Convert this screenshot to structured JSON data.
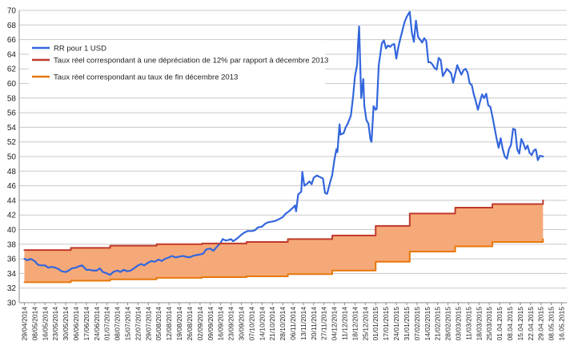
{
  "chart_data": {
    "type": "line",
    "title": "",
    "xlabel": "",
    "ylabel": "",
    "ylim": [
      30,
      70
    ],
    "yticks": [
      30,
      32,
      34,
      36,
      38,
      40,
      42,
      44,
      46,
      48,
      50,
      52,
      54,
      56,
      58,
      60,
      62,
      64,
      66,
      68,
      70
    ],
    "grid": true,
    "legend_position": "top-left",
    "x_categories": [
      "29/04/2014",
      "08/05/2014",
      "16/05/2014",
      "23/05/2014",
      "30/05/2014",
      "06/06/2014",
      "17/06/2014",
      "24/06/2014",
      "01/07/2014",
      "08/07/2014",
      "15/07/2014",
      "22/07/2014",
      "29/07/2014",
      "05/08/2014",
      "12/08/2014",
      "19/08/2014",
      "26/08/2014",
      "02/09/2014",
      "09/09/2014",
      "16/09/2014",
      "23/09/2014",
      "30/09/2014",
      "07/10/2014",
      "14/10/2014",
      "21/10/2014",
      "28/10/2014",
      "06/11/2014",
      "13/11/2014",
      "20/11/2014",
      "27/11/2014",
      "04/12/2014",
      "11/12/2014",
      "18/12/2014",
      "25/12/2014",
      "01/01/2015",
      "17/01/2015",
      "24/01/2015",
      "31/01/2015",
      "07/02/2015",
      "14/02/2015",
      "21/02/2015",
      "28/02/2015",
      "03/03/2015",
      "11/03/2015",
      "18/03/2015",
      "25/03/2015",
      "01.04.2015",
      "08.04.2015",
      "15.04.2015",
      "22.04.2015",
      "29.04.2015",
      "08.05.2015",
      "16.05.2015"
    ],
    "series": [
      {
        "name": "RR pour 1  USD",
        "color": "#3366dd",
        "style": "line",
        "values": [
          [
            0,
            36.0
          ],
          [
            0.3,
            35.8
          ],
          [
            0.6,
            36.0
          ],
          [
            1,
            35.7
          ],
          [
            1.3,
            35.2
          ],
          [
            1.6,
            35.1
          ],
          [
            2,
            35.1
          ],
          [
            2.3,
            34.8
          ],
          [
            2.6,
            34.9
          ],
          [
            3,
            34.8
          ],
          [
            3.3,
            34.6
          ],
          [
            3.6,
            34.3
          ],
          [
            4,
            34.2
          ],
          [
            4.3,
            34.4
          ],
          [
            4.6,
            34.7
          ],
          [
            5,
            34.8
          ],
          [
            5.3,
            35.0
          ],
          [
            5.6,
            35.1
          ],
          [
            6,
            34.5
          ],
          [
            6.3,
            34.5
          ],
          [
            6.6,
            34.4
          ],
          [
            7,
            34.4
          ],
          [
            7.3,
            34.7
          ],
          [
            7.6,
            34.2
          ],
          [
            8,
            34.0
          ],
          [
            8.3,
            33.8
          ],
          [
            8.6,
            34.2
          ],
          [
            9,
            34.4
          ],
          [
            9.3,
            34.2
          ],
          [
            9.6,
            34.5
          ],
          [
            10,
            34.3
          ],
          [
            10.3,
            34.4
          ],
          [
            10.6,
            34.7
          ],
          [
            11,
            35.1
          ],
          [
            11.3,
            35.3
          ],
          [
            11.6,
            35.1
          ],
          [
            12,
            35.5
          ],
          [
            12.3,
            35.7
          ],
          [
            12.6,
            35.6
          ],
          [
            13,
            35.9
          ],
          [
            13.3,
            35.7
          ],
          [
            13.6,
            36.0
          ],
          [
            14,
            36.2
          ],
          [
            14.3,
            36.4
          ],
          [
            14.6,
            36.2
          ],
          [
            15,
            36.3
          ],
          [
            15.3,
            36.4
          ],
          [
            15.6,
            36.3
          ],
          [
            16,
            36.2
          ],
          [
            16.3,
            36.4
          ],
          [
            16.6,
            36.5
          ],
          [
            17,
            36.6
          ],
          [
            17.3,
            36.7
          ],
          [
            17.6,
            37.3
          ],
          [
            18,
            37.4
          ],
          [
            18.3,
            37.1
          ],
          [
            18.6,
            37.6
          ],
          [
            19,
            38.2
          ],
          [
            19.2,
            38.7
          ],
          [
            19.5,
            38.5
          ],
          [
            19.8,
            38.6
          ],
          [
            20,
            38.7
          ],
          [
            20.2,
            38.4
          ],
          [
            20.4,
            38.6
          ],
          [
            20.6,
            38.8
          ],
          [
            21,
            39.3
          ],
          [
            21.3,
            39.6
          ],
          [
            21.6,
            39.8
          ],
          [
            22,
            39.8
          ],
          [
            22.3,
            39.9
          ],
          [
            22.6,
            40.3
          ],
          [
            23,
            40.4
          ],
          [
            23.3,
            40.8
          ],
          [
            23.6,
            41.0
          ],
          [
            24,
            41.1
          ],
          [
            24.3,
            41.2
          ],
          [
            24.6,
            41.4
          ],
          [
            25,
            41.7
          ],
          [
            25.3,
            42.2
          ],
          [
            25.6,
            42.5
          ],
          [
            26,
            43.0
          ],
          [
            26.2,
            43.3
          ],
          [
            26.3,
            42.5
          ],
          [
            26.5,
            44.8
          ],
          [
            26.8,
            45.2
          ],
          [
            26.9,
            47.9
          ],
          [
            27.1,
            46.0
          ],
          [
            27.3,
            46.2
          ],
          [
            27.6,
            46.6
          ],
          [
            27.8,
            46.2
          ],
          [
            28,
            47.1
          ],
          [
            28.3,
            47.4
          ],
          [
            28.6,
            47.2
          ],
          [
            28.9,
            47.0
          ],
          [
            29.1,
            45.0
          ],
          [
            29.3,
            44.9
          ],
          [
            29.6,
            46.5
          ],
          [
            29.8,
            47.5
          ],
          [
            30,
            49.5
          ],
          [
            30.2,
            51.0
          ],
          [
            30.3,
            50.6
          ],
          [
            30.5,
            54.4
          ],
          [
            30.6,
            53.0
          ],
          [
            30.9,
            53.2
          ],
          [
            31.1,
            54.0
          ],
          [
            31.3,
            54.5
          ],
          [
            31.6,
            55.6
          ],
          [
            31.8,
            58.0
          ],
          [
            32,
            61.0
          ],
          [
            32.2,
            62.5
          ],
          [
            32.3,
            65.5
          ],
          [
            32.4,
            67.8
          ],
          [
            32.6,
            58.0
          ],
          [
            32.8,
            60.6
          ],
          [
            32.9,
            57.0
          ],
          [
            33.1,
            55.0
          ],
          [
            33.3,
            54.5
          ],
          [
            33.5,
            52.3
          ],
          [
            33.6,
            52.0
          ],
          [
            33.8,
            56.9
          ],
          [
            34,
            56.4
          ],
          [
            34.1,
            56.5
          ],
          [
            34.3,
            62.5
          ],
          [
            34.6,
            65.5
          ],
          [
            34.8,
            65.9
          ],
          [
            35,
            64.8
          ],
          [
            35.2,
            65.2
          ],
          [
            35.4,
            65.0
          ],
          [
            35.6,
            65.3
          ],
          [
            35.8,
            65.4
          ],
          [
            36,
            63.4
          ],
          [
            36.2,
            65.0
          ],
          [
            36.4,
            66.2
          ],
          [
            36.6,
            67.3
          ],
          [
            36.8,
            68.4
          ],
          [
            37,
            69.1
          ],
          [
            37.3,
            69.8
          ],
          [
            37.5,
            67.0
          ],
          [
            37.7,
            65.7
          ],
          [
            37.9,
            68.6
          ],
          [
            38.1,
            66.4
          ],
          [
            38.3,
            66.0
          ],
          [
            38.5,
            65.6
          ],
          [
            38.7,
            66.2
          ],
          [
            38.9,
            65.8
          ],
          [
            39.1,
            62.9
          ],
          [
            39.3,
            62.9
          ],
          [
            39.5,
            62.6
          ],
          [
            39.7,
            62.1
          ],
          [
            39.9,
            61.9
          ],
          [
            40.1,
            63.5
          ],
          [
            40.3,
            63.2
          ],
          [
            40.5,
            61.0
          ],
          [
            40.7,
            61.5
          ],
          [
            40.9,
            62.0
          ],
          [
            41.1,
            61.7
          ],
          [
            41.3,
            61.4
          ],
          [
            41.5,
            60.1
          ],
          [
            41.7,
            61.3
          ],
          [
            41.9,
            62.5
          ],
          [
            42.1,
            61.8
          ],
          [
            42.3,
            61.2
          ],
          [
            42.5,
            61.8
          ],
          [
            42.7,
            62.0
          ],
          [
            42.9,
            61.5
          ],
          [
            43.1,
            60.0
          ],
          [
            43.3,
            59.8
          ],
          [
            43.5,
            58.5
          ],
          [
            43.7,
            57.5
          ],
          [
            43.9,
            56.4
          ],
          [
            44.1,
            57.5
          ],
          [
            44.3,
            58.5
          ],
          [
            44.5,
            58.0
          ],
          [
            44.7,
            58.6
          ],
          [
            44.9,
            57.0
          ],
          [
            45.1,
            56.8
          ],
          [
            45.3,
            55.5
          ],
          [
            45.5,
            54.0
          ],
          [
            45.7,
            52.5
          ],
          [
            45.9,
            51.2
          ],
          [
            46.1,
            52.5
          ],
          [
            46.3,
            51.0
          ],
          [
            46.5,
            50.0
          ],
          [
            46.7,
            49.7
          ],
          [
            46.9,
            51.0
          ],
          [
            47.1,
            51.6
          ],
          [
            47.3,
            53.8
          ],
          [
            47.5,
            53.7
          ],
          [
            47.7,
            51.0
          ],
          [
            47.9,
            50.4
          ],
          [
            48.1,
            52.4
          ],
          [
            48.3,
            51.8
          ],
          [
            48.5,
            51.0
          ],
          [
            48.7,
            51.5
          ],
          [
            48.9,
            50.5
          ],
          [
            49.1,
            50.2
          ],
          [
            49.3,
            50.8
          ],
          [
            49.5,
            51.0
          ],
          [
            49.7,
            49.5
          ],
          [
            49.9,
            50.1
          ],
          [
            50.2,
            50.0
          ]
        ]
      },
      {
        "name": "Taux réel correspondant à une dépréciation de 12% par rapport à décembre 2013",
        "color": "#c0392b",
        "style": "step",
        "values": [
          [
            0,
            37.2
          ],
          [
            4.5,
            37.5
          ],
          [
            8.3,
            37.8
          ],
          [
            12.8,
            38.0
          ],
          [
            17.2,
            38.1
          ],
          [
            21.5,
            38.3
          ],
          [
            25.5,
            38.7
          ],
          [
            29.8,
            39.2
          ],
          [
            34,
            40.5
          ],
          [
            37.3,
            42.2
          ],
          [
            41.7,
            43.0
          ],
          [
            45.3,
            43.5
          ],
          [
            50.2,
            44.0
          ]
        ]
      },
      {
        "name": "Taux réel correspondant au taux de fin décembre 2013",
        "color": "#e6780a",
        "style": "step",
        "values": [
          [
            0,
            32.8
          ],
          [
            4.5,
            33.0
          ],
          [
            8.3,
            33.2
          ],
          [
            12.8,
            33.4
          ],
          [
            17.2,
            33.5
          ],
          [
            21.5,
            33.6
          ],
          [
            25.5,
            33.9
          ],
          [
            29.8,
            34.4
          ],
          [
            34,
            35.6
          ],
          [
            37.3,
            37.0
          ],
          [
            41.7,
            37.7
          ],
          [
            45.3,
            38.3
          ],
          [
            50.2,
            38.7
          ]
        ]
      }
    ],
    "fill_between": {
      "from_series": 2,
      "to_series": 1,
      "color": "#f6a978"
    }
  }
}
